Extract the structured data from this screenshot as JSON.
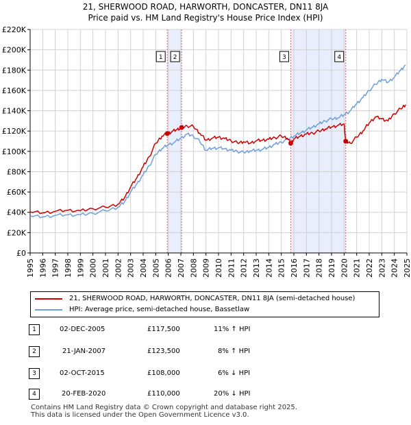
{
  "title": {
    "line1": "21, SHERWOOD ROAD, HARWORTH, DONCASTER, DN11 8JA",
    "line2": "Price paid vs. HM Land Registry's House Price Index (HPI)"
  },
  "colors": {
    "property": "#cc0000",
    "hpi": "#6f9fd8",
    "shade": "#e8eefc",
    "marker_line": "#e06666",
    "grid": "#d0d0d0"
  },
  "legend": {
    "property_label": "21, SHERWOOD ROAD, HARWORTH, DONCASTER, DN11 8JA (semi-detached house)",
    "hpi_label": "HPI: Average price, semi-detached house, Bassetlaw"
  },
  "sales": [
    {
      "num": "1",
      "date": "02-DEC-2005",
      "price": "£117,500",
      "hpi": "11% ↑ HPI"
    },
    {
      "num": "2",
      "date": "21-JAN-2007",
      "price": "£123,500",
      "hpi": "8% ↑ HPI"
    },
    {
      "num": "3",
      "date": "02-OCT-2015",
      "price": "£108,000",
      "hpi": "6% ↓ HPI"
    },
    {
      "num": "4",
      "date": "20-FEB-2020",
      "price": "£110,000",
      "hpi": "20% ↓ HPI"
    }
  ],
  "footer": {
    "line1": "Contains HM Land Registry data © Crown copyright and database right 2025.",
    "line2": "This data is licensed under the Open Government Licence v3.0."
  },
  "chart_data": {
    "type": "line",
    "title": "21, SHERWOOD ROAD, HARWORTH, DONCASTER, DN11 8JA — Price paid vs. HM Land Registry's House Price Index (HPI)",
    "xlabel": "",
    "ylabel": "",
    "xlim": [
      1995,
      2025
    ],
    "ylim": [
      0,
      220000
    ],
    "x_ticks": [
      "1995",
      "1996",
      "1997",
      "1998",
      "1999",
      "2000",
      "2001",
      "2002",
      "2003",
      "2004",
      "2005",
      "2006",
      "2007",
      "2008",
      "2009",
      "2010",
      "2011",
      "2012",
      "2013",
      "2014",
      "2015",
      "2016",
      "2017",
      "2018",
      "2019",
      "2020",
      "2021",
      "2022",
      "2023",
      "2024",
      "2025"
    ],
    "y_ticks": [
      {
        "value": 0,
        "label": "£0"
      },
      {
        "value": 20000,
        "label": "£20K"
      },
      {
        "value": 40000,
        "label": "£40K"
      },
      {
        "value": 60000,
        "label": "£60K"
      },
      {
        "value": 80000,
        "label": "£80K"
      },
      {
        "value": 100000,
        "label": "£100K"
      },
      {
        "value": 120000,
        "label": "£120K"
      },
      {
        "value": 140000,
        "label": "£140K"
      },
      {
        "value": 160000,
        "label": "£160K"
      },
      {
        "value": 180000,
        "label": "£180K"
      },
      {
        "value": 200000,
        "label": "£200K"
      },
      {
        "value": 220000,
        "label": "£220K"
      }
    ],
    "grid": true,
    "shaded_ranges": [
      [
        2005.92,
        2007.06
      ],
      [
        2015.75,
        2020.13
      ]
    ],
    "sale_markers": [
      {
        "label": "1",
        "x": 2005.92,
        "y": 117500
      },
      {
        "label": "2",
        "x": 2007.06,
        "y": 123500
      },
      {
        "label": "3",
        "x": 2015.75,
        "y": 108000
      },
      {
        "label": "4",
        "x": 2020.13,
        "y": 110000
      }
    ],
    "series": [
      {
        "name": "21, SHERWOOD ROAD, HARWORTH, DONCASTER, DN11 8JA (semi-detached house)",
        "color": "#cc0000",
        "x": [
          1995,
          1996,
          1997,
          1998,
          1999,
          2000,
          2001,
          2002,
          2002.5,
          2003,
          2003.5,
          2004,
          2004.5,
          2005,
          2005.5,
          2005.92,
          2006.3,
          2006.7,
          2007.06,
          2007.5,
          2008,
          2008.5,
          2009,
          2009.5,
          2010,
          2010.5,
          2011,
          2011.5,
          2012,
          2012.5,
          2013,
          2013.5,
          2014,
          2014.5,
          2015,
          2015.5,
          2015.75,
          2016,
          2016.5,
          2017,
          2017.5,
          2018,
          2018.5,
          2019,
          2019.5,
          2020,
          2020.13,
          2020.5,
          2021,
          2021.5,
          2022,
          2022.5,
          2023,
          2023.5,
          2024,
          2024.5,
          2024.9
        ],
        "values": [
          40500,
          39500,
          41000,
          42000,
          41500,
          43500,
          45000,
          48000,
          54000,
          65000,
          74000,
          85000,
          95000,
          108000,
          115000,
          117500,
          119500,
          121500,
          123500,
          125000,
          124500,
          118000,
          111000,
          113000,
          114000,
          112500,
          110500,
          108500,
          109500,
          108000,
          110500,
          111000,
          112000,
          113500,
          115000,
          113000,
          108000,
          112000,
          115000,
          117000,
          118000,
          120000,
          122000,
          124000,
          125500,
          127000,
          110000,
          108000,
          114000,
          120000,
          128000,
          134000,
          132000,
          130000,
          137000,
          142000,
          146000
        ]
      },
      {
        "name": "HPI: Average price, semi-detached house, Bassetlaw",
        "color": "#6f9fd8",
        "x": [
          1995,
          1996,
          1997,
          1998,
          1999,
          2000,
          2001,
          2002,
          2002.5,
          2003,
          2003.5,
          2004,
          2004.5,
          2005,
          2005.5,
          2005.92,
          2006.5,
          2007,
          2007.5,
          2008,
          2008.5,
          2009,
          2009.5,
          2010,
          2010.5,
          2011,
          2011.5,
          2012,
          2012.5,
          2013,
          2013.5,
          2014,
          2014.5,
          2015,
          2015.5,
          2016,
          2016.5,
          2017,
          2017.5,
          2018,
          2018.5,
          2019,
          2019.5,
          2020,
          2020.5,
          2021,
          2021.5,
          2022,
          2022.5,
          2023,
          2023.5,
          2024,
          2024.5,
          2024.9
        ],
        "values": [
          36500,
          35500,
          37000,
          37500,
          37500,
          39000,
          41500,
          45000,
          50000,
          60000,
          68000,
          77000,
          86000,
          97000,
          103000,
          106000,
          109000,
          113000,
          117000,
          115000,
          110000,
          101000,
          103000,
          103500,
          102500,
          101000,
          100000,
          99000,
          100500,
          101000,
          102000,
          104000,
          107000,
          109000,
          112000,
          115000,
          118000,
          121000,
          124000,
          127000,
          130000,
          132000,
          133000,
          136000,
          140000,
          147000,
          153000,
          160000,
          166000,
          171000,
          168000,
          173000,
          180000,
          185000
        ]
      }
    ]
  }
}
